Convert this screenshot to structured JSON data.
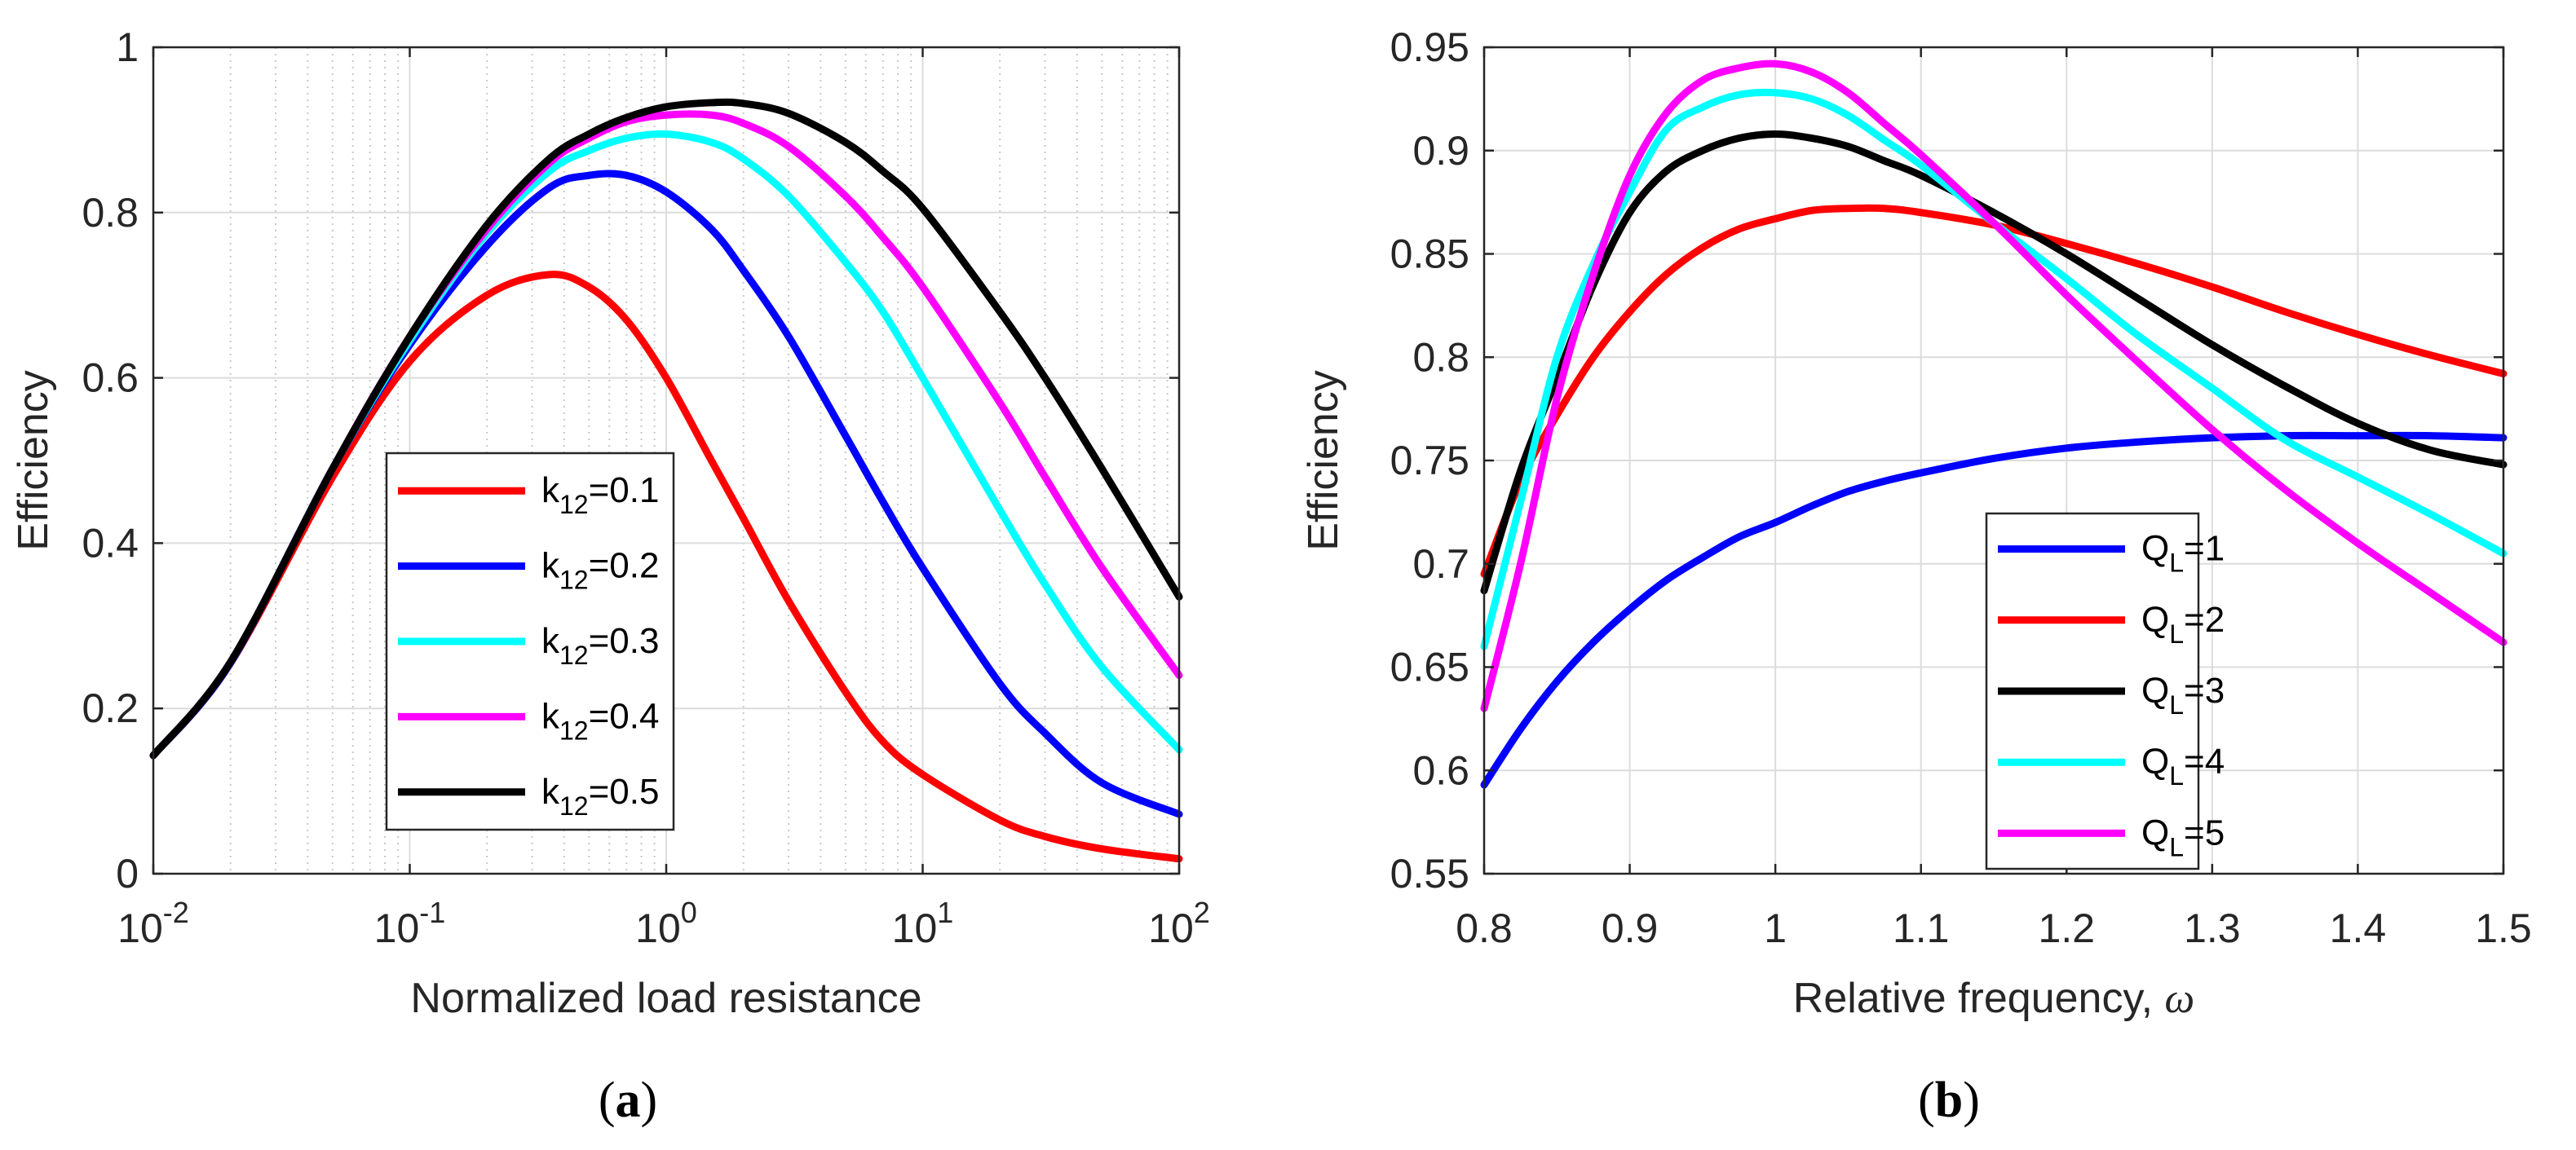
{
  "chart_data": [
    {
      "type": "line",
      "panel": "a",
      "caption": {
        "open": "(",
        "letter": "a",
        "close": ")"
      },
      "xlabel": "Normalized load resistance",
      "ylabel": "Efficiency",
      "xscale": "log",
      "xlim": [
        0.01,
        100
      ],
      "ylim": [
        0,
        1
      ],
      "grid": true,
      "x_ticks": [
        {
          "base": "10",
          "exp": "-2",
          "value": 0.01
        },
        {
          "base": "10",
          "exp": "-1",
          "value": 0.1
        },
        {
          "base": "10",
          "exp": "0",
          "value": 1
        },
        {
          "base": "10",
          "exp": "1",
          "value": 10
        },
        {
          "base": "10",
          "exp": "2",
          "value": 100
        }
      ],
      "y_ticks": [
        {
          "label": "0",
          "value": 0
        },
        {
          "label": "0.2",
          "value": 0.2
        },
        {
          "label": "0.4",
          "value": 0.4
        },
        {
          "label": "0.6",
          "value": 0.6
        },
        {
          "label": "0.8",
          "value": 0.8
        },
        {
          "label": "1",
          "value": 1
        }
      ],
      "legend_position": "center",
      "x": [
        0.01,
        0.02,
        0.05,
        0.1,
        0.2,
        0.35,
        0.5,
        0.7,
        1,
        1.5,
        2,
        3,
        5,
        7,
        10,
        20,
        30,
        50,
        100
      ],
      "series": [
        {
          "name": "k12=0.1",
          "label": {
            "main": "k",
            "sub": "12",
            "tail": "=0.1"
          },
          "color": "#ff0000",
          "values": [
            0.143,
            0.255,
            0.48,
            0.62,
            0.7,
            0.725,
            0.71,
            0.67,
            0.6,
            0.5,
            0.43,
            0.33,
            0.22,
            0.16,
            0.12,
            0.065,
            0.045,
            0.03,
            0.018
          ]
        },
        {
          "name": "k12=0.2",
          "label": {
            "main": "k",
            "sub": "12",
            "tail": "=0.2"
          },
          "color": "#0000ff",
          "values": [
            0.143,
            0.255,
            0.49,
            0.64,
            0.76,
            0.83,
            0.845,
            0.845,
            0.825,
            0.78,
            0.73,
            0.65,
            0.53,
            0.45,
            0.37,
            0.23,
            0.17,
            0.11,
            0.072
          ]
        },
        {
          "name": "k12=0.3",
          "label": {
            "main": "k",
            "sub": "12",
            "tail": "=0.3"
          },
          "color": "#00ffff",
          "values": [
            0.143,
            0.256,
            0.49,
            0.645,
            0.775,
            0.85,
            0.875,
            0.89,
            0.895,
            0.885,
            0.865,
            0.82,
            0.74,
            0.68,
            0.6,
            0.44,
            0.35,
            0.25,
            0.15
          ]
        },
        {
          "name": "k12=0.4",
          "label": {
            "main": "k",
            "sub": "12",
            "tail": "=0.4"
          },
          "color": "#ff00ff",
          "values": [
            0.143,
            0.256,
            0.49,
            0.65,
            0.78,
            0.86,
            0.89,
            0.91,
            0.918,
            0.918,
            0.908,
            0.88,
            0.82,
            0.77,
            0.71,
            0.57,
            0.48,
            0.37,
            0.24
          ]
        },
        {
          "name": "k12=0.5",
          "label": {
            "main": "k",
            "sub": "12",
            "tail": "=0.5"
          },
          "color": "#000000",
          "values": [
            0.143,
            0.256,
            0.49,
            0.65,
            0.785,
            0.865,
            0.895,
            0.915,
            0.928,
            0.933,
            0.932,
            0.92,
            0.885,
            0.85,
            0.805,
            0.68,
            0.6,
            0.49,
            0.335
          ]
        }
      ]
    },
    {
      "type": "line",
      "panel": "b",
      "caption": {
        "open": "(",
        "letter": "b",
        "close": ")"
      },
      "xlabel": "Relative frequency,",
      "xlabel_symbol": "ω",
      "ylabel": "Efficiency",
      "xscale": "linear",
      "xlim": [
        0.8,
        1.5
      ],
      "ylim": [
        0.55,
        0.95
      ],
      "grid": true,
      "x_ticks": [
        {
          "label": "0.8",
          "value": 0.8
        },
        {
          "label": "0.9",
          "value": 0.9
        },
        {
          "label": "1",
          "value": 1.0
        },
        {
          "label": "1.1",
          "value": 1.1
        },
        {
          "label": "1.2",
          "value": 1.2
        },
        {
          "label": "1.3",
          "value": 1.3
        },
        {
          "label": "1.4",
          "value": 1.4
        },
        {
          "label": "1.5",
          "value": 1.5
        }
      ],
      "y_ticks": [
        {
          "label": "0.55",
          "value": 0.55
        },
        {
          "label": "0.6",
          "value": 0.6
        },
        {
          "label": "0.65",
          "value": 0.65
        },
        {
          "label": "0.7",
          "value": 0.7
        },
        {
          "label": "0.75",
          "value": 0.75
        },
        {
          "label": "0.8",
          "value": 0.8
        },
        {
          "label": "0.85",
          "value": 0.85
        },
        {
          "label": "0.9",
          "value": 0.9
        },
        {
          "label": "0.95",
          "value": 0.95
        }
      ],
      "legend_position": "bottom-right",
      "x": [
        0.8,
        0.825,
        0.85,
        0.875,
        0.9,
        0.925,
        0.95,
        0.975,
        1.0,
        1.025,
        1.05,
        1.075,
        1.1,
        1.15,
        1.2,
        1.25,
        1.3,
        1.35,
        1.4,
        1.45,
        1.5
      ],
      "series": [
        {
          "name": "QL=1",
          "label": {
            "main": "Q",
            "sub": "L",
            "tail": "=1"
          },
          "color": "#0000ff",
          "values": [
            0.593,
            0.62,
            0.643,
            0.662,
            0.678,
            0.692,
            0.703,
            0.713,
            0.72,
            0.728,
            0.735,
            0.74,
            0.744,
            0.751,
            0.756,
            0.759,
            0.761,
            0.762,
            0.762,
            0.762,
            0.761
          ]
        },
        {
          "name": "QL=2",
          "label": {
            "main": "Q",
            "sub": "L",
            "tail": "=2"
          },
          "color": "#ff0000",
          "values": [
            0.695,
            0.74,
            0.772,
            0.8,
            0.822,
            0.84,
            0.853,
            0.862,
            0.867,
            0.871,
            0.872,
            0.872,
            0.87,
            0.864,
            0.855,
            0.845,
            0.834,
            0.822,
            0.811,
            0.801,
            0.792
          ]
        },
        {
          "name": "QL=3",
          "label": {
            "main": "Q",
            "sub": "L",
            "tail": "=3"
          },
          "color": "#000000",
          "values": [
            0.687,
            0.745,
            0.79,
            0.835,
            0.87,
            0.89,
            0.9,
            0.906,
            0.908,
            0.906,
            0.902,
            0.895,
            0.888,
            0.87,
            0.85,
            0.828,
            0.806,
            0.786,
            0.768,
            0.755,
            0.748
          ]
        },
        {
          "name": "QL=4",
          "label": {
            "main": "Q",
            "sub": "L",
            "tail": "=4"
          },
          "color": "#00ffff",
          "values": [
            0.66,
            0.73,
            0.8,
            0.845,
            0.88,
            0.91,
            0.921,
            0.927,
            0.928,
            0.925,
            0.917,
            0.905,
            0.893,
            0.865,
            0.838,
            0.81,
            0.785,
            0.76,
            0.742,
            0.724,
            0.705
          ]
        },
        {
          "name": "QL=5",
          "label": {
            "main": "Q",
            "sub": "L",
            "tail": "=5"
          },
          "color": "#ff00ff",
          "values": [
            0.63,
            0.7,
            0.78,
            0.84,
            0.888,
            0.918,
            0.934,
            0.94,
            0.942,
            0.938,
            0.928,
            0.913,
            0.898,
            0.865,
            0.83,
            0.797,
            0.765,
            0.736,
            0.71,
            0.686,
            0.662
          ]
        }
      ]
    }
  ]
}
